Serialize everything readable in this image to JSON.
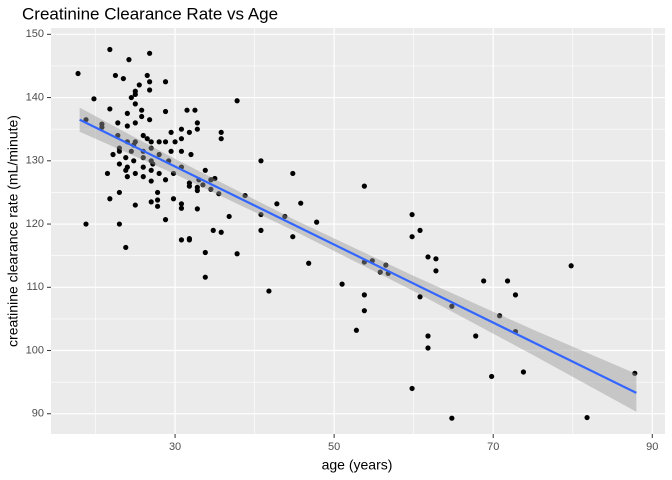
{
  "chart_data": {
    "type": "scatter",
    "title": "Creatinine Clearance Rate vs Age",
    "x_label": "age (years)",
    "y_label": "creatinine clearance rate (mL/minute)",
    "xlim": [
      14.4,
      91.6
    ],
    "ylim": [
      86.8,
      151
    ],
    "xticks": [
      30,
      50,
      70,
      90
    ],
    "yticks": [
      90,
      100,
      110,
      120,
      130,
      140,
      150
    ],
    "xminor": [
      20,
      40,
      60,
      80
    ],
    "yminor": [
      95,
      105,
      115,
      125,
      135,
      145
    ],
    "grid": true,
    "point_color": "#000000",
    "x": [
      17.8,
      18.8,
      18.8,
      19.8,
      20.8,
      20.8,
      21.8,
      21.8,
      21.5,
      21.8,
      22.2,
      22.5,
      22.8,
      22.8,
      23,
      23,
      23,
      23,
      23,
      23.5,
      23.8,
      23.8,
      23.8,
      24,
      24,
      24,
      24,
      24,
      24.2,
      24.5,
      24.5,
      24.8,
      24.8,
      25,
      25,
      25,
      25,
      25,
      25,
      25,
      25.5,
      25.8,
      25.8,
      26,
      26,
      26,
      26,
      26,
      26.5,
      26.5,
      26.8,
      26.8,
      26.8,
      26.8,
      27,
      27,
      27,
      27,
      27,
      27,
      27.2,
      27.8,
      27.8,
      27.8,
      28,
      28,
      28,
      28.8,
      28.8,
      28.8,
      28.8,
      28.8,
      29.2,
      29.5,
      29.5,
      29.8,
      29.8,
      30,
      30.8,
      30.8,
      30.8,
      30.8,
      30.8,
      30.8,
      30.8,
      31.5,
      31.8,
      31.8,
      31.8,
      31.8,
      31.8,
      32,
      32.5,
      32.8,
      32.8,
      32.8,
      32.8,
      32.8,
      33,
      33.5,
      33.8,
      33.8,
      33.8,
      34.5,
      34.5,
      34.8,
      35,
      35.5,
      35.8,
      35.8,
      35.8,
      36.8,
      37.8,
      37.8,
      38.8,
      40.8,
      40.8,
      40.8,
      41.8,
      42.8,
      43.8,
      44.8,
      44.8,
      45.8,
      46.8,
      47.8,
      51,
      52.8,
      53.8,
      53.8,
      53.8,
      53.8,
      54.8,
      55.8,
      56.5,
      56.8,
      59.8,
      59.8,
      59.8,
      60.8,
      60.8,
      61.8,
      61.8,
      61.8,
      62.8,
      62.8,
      64.8,
      64.8,
      67.8,
      68.8,
      69.8,
      70.8,
      71.8,
      72.8,
      72.8,
      73.8,
      79.8,
      81.8,
      87.8
    ],
    "y": [
      143.8,
      136.5,
      120,
      139.8,
      135.8,
      135.3,
      147.6,
      138.2,
      128,
      124,
      131,
      143.5,
      136,
      134,
      132,
      131.5,
      129.5,
      125,
      120,
      143,
      116.3,
      128.5,
      130.5,
      137.5,
      135.5,
      133,
      129,
      127.5,
      146,
      140,
      131.5,
      132.5,
      130,
      141,
      140.5,
      139,
      136,
      133,
      128,
      123,
      142,
      138,
      137,
      134,
      131.5,
      130.5,
      129,
      127.5,
      143.5,
      133.5,
      147,
      142.5,
      141.2,
      136.5,
      133,
      132,
      130,
      128.5,
      126.8,
      123.5,
      129.5,
      125,
      123.8,
      122.8,
      133,
      131,
      128,
      142.5,
      137.8,
      133,
      127,
      120.7,
      130,
      134.5,
      131.5,
      128,
      124,
      133,
      135,
      133.5,
      131.5,
      129,
      123.2,
      122.5,
      117.5,
      138,
      134.5,
      126.5,
      126,
      117.5,
      117.7,
      131,
      138,
      136,
      135,
      125.8,
      125.3,
      122.4,
      127,
      126.2,
      128.5,
      111.6,
      115.5,
      125.5,
      127,
      119,
      127.2,
      124.8,
      134.5,
      133.5,
      118.7,
      121.2,
      139.5,
      115.3,
      124.5,
      130,
      121.5,
      119,
      109.4,
      123.2,
      121.2,
      128,
      118,
      123.3,
      113.8,
      120.3,
      110.5,
      103.2,
      126,
      114,
      108.8,
      106.3,
      114.2,
      112.4,
      113.5,
      112.2,
      121.5,
      118,
      94,
      119,
      108.5,
      114.8,
      102.3,
      100.4,
      114.5,
      112.6,
      107,
      89.3,
      102.3,
      111,
      95.9,
      105.5,
      111,
      108.8,
      103,
      96.6,
      113.4,
      89.4,
      96.4
    ],
    "fit": {
      "x": [
        18,
        88
      ],
      "y": [
        136.5,
        93.3
      ],
      "color": "#3366ff"
    },
    "band": {
      "x": [
        18,
        30,
        45,
        60,
        75,
        88
      ],
      "lower": [
        134.6,
        127.9,
        118.9,
        109.4,
        99.3,
        90.3
      ],
      "upper": [
        138.4,
        130.3,
        120.7,
        111.8,
        103.3,
        96.3
      ],
      "color": "#999999"
    }
  }
}
